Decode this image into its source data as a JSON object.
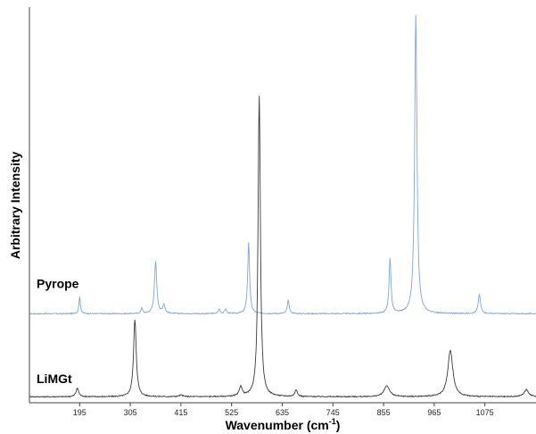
{
  "chart_data": {
    "type": "line",
    "title": "",
    "xlabel": "Wavenumber (cm",
    "xlabel_sup": "-1",
    "xlabel_suffix": ")",
    "ylabel": "Arbitrary Intensity",
    "xlim": [
      86,
      1186
    ],
    "ylim": [
      0,
      100
    ],
    "xticks": [
      195,
      305,
      415,
      525,
      635,
      745,
      855,
      965,
      1075
    ],
    "tick_labels": [
      "195",
      "305",
      "415",
      "525",
      "635",
      "745",
      "855",
      "965",
      "1075"
    ],
    "grid": false,
    "legend": "none",
    "series": [
      {
        "name": "Pyrope",
        "color": "#7fa6d8",
        "baseline": 22.5,
        "label_anchor": [
          86,
          29
        ],
        "peaks": [
          {
            "x": 195,
            "h": 4.2,
            "w": 4
          },
          {
            "x": 330,
            "h": 1.5,
            "w": 4
          },
          {
            "x": 360,
            "h": 13.2,
            "w": 6
          },
          {
            "x": 378,
            "h": 2.2,
            "w": 6
          },
          {
            "x": 498,
            "h": 1.1,
            "w": 5
          },
          {
            "x": 512,
            "h": 1.2,
            "w": 5
          },
          {
            "x": 562,
            "h": 18.0,
            "w": 5
          },
          {
            "x": 648,
            "h": 3.4,
            "w": 5
          },
          {
            "x": 869,
            "h": 14.0,
            "w": 5
          },
          {
            "x": 925,
            "h": 75.5,
            "w": 6
          },
          {
            "x": 1063,
            "h": 4.8,
            "w": 6
          }
        ]
      },
      {
        "name": "LiMGt",
        "color": "#3a3a3a",
        "baseline": 1.5,
        "label_anchor": [
          86,
          5
        ],
        "peaks": [
          {
            "x": 190,
            "h": 2.2,
            "w": 7
          },
          {
            "x": 315,
            "h": 19.5,
            "w": 7
          },
          {
            "x": 415,
            "h": 0.4,
            "w": 10
          },
          {
            "x": 545,
            "h": 2.5,
            "w": 7
          },
          {
            "x": 585,
            "h": 76.2,
            "w": 6
          },
          {
            "x": 665,
            "h": 1.8,
            "w": 6
          },
          {
            "x": 862,
            "h": 2.8,
            "w": 14
          },
          {
            "x": 1000,
            "h": 11.8,
            "w": 13
          },
          {
            "x": 1165,
            "h": 1.8,
            "w": 12
          }
        ]
      }
    ]
  }
}
